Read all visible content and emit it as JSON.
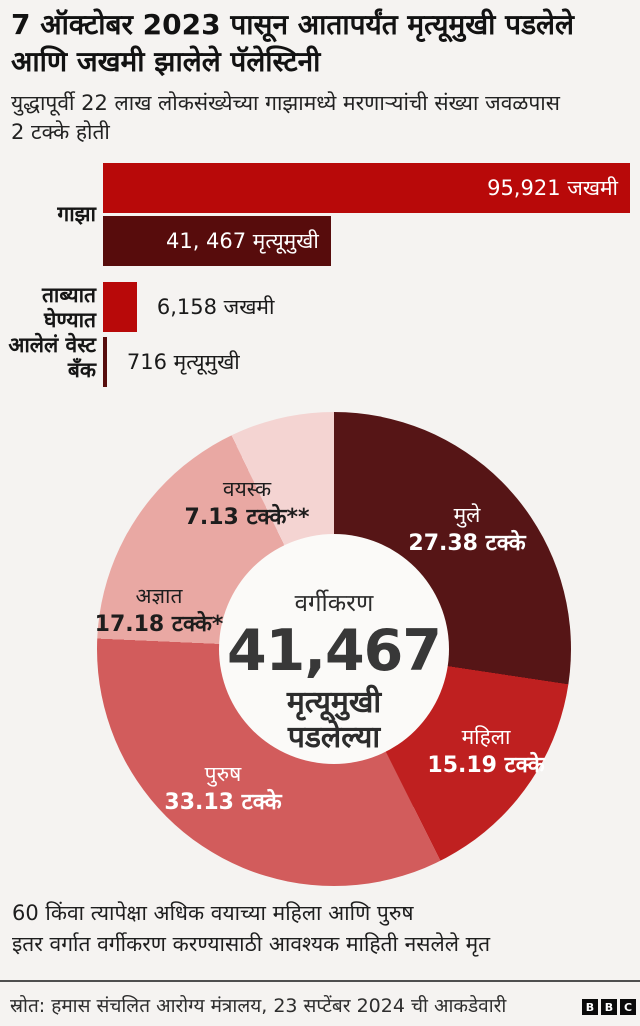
{
  "header": {
    "title": "7 ऑक्टोबर 2023 पासून आतापर्यंत मृत्यूमुखी पडलेले\nआणि जखमी झालेले पॅलेस्टिनी",
    "subtitle": "युद्धापूर्वी 22 लाख लोकसंख्येच्या गाझामध्ये मरणाऱ्यांची संख्या जवळपास\n2 टक्के होती"
  },
  "colors": {
    "background": "#f5f3f1",
    "injured_red": "#b80909",
    "dead_maroon": "#570c0c",
    "separator": "#4f4f4f",
    "logo_black": "#0a0a0a"
  },
  "chart_data": [
    {
      "type": "bar",
      "orientation": "horizontal",
      "xmax": 95921,
      "groups": [
        {
          "label": "गाझा",
          "bars": [
            {
              "name": "जखमी",
              "value": 95921,
              "label": "95,921 जखमी",
              "color": "#b80909",
              "label_inside": true
            },
            {
              "name": "मृत्यूमुखी",
              "value": 41467,
              "label": "41, 467 मृत्यूमुखी",
              "color": "#570c0c",
              "label_inside": true
            }
          ]
        },
        {
          "label": "ताब्यात\nघेण्यात\nआलेलं वेस्ट\nबँक",
          "bars": [
            {
              "name": "जखमी",
              "value": 6158,
              "label": "6,158 जखमी",
              "color": "#b80909",
              "label_inside": false
            },
            {
              "name": "मृत्यूमुखी",
              "value": 716,
              "label": "716 मृत्यूमुखी",
              "color": "#570c0c",
              "label_inside": false
            }
          ]
        }
      ]
    },
    {
      "type": "donut",
      "start_angle_deg": 0,
      "clockwise": true,
      "center": {
        "title": "वर्गीकरण",
        "value": "41,467",
        "sub1": "मृत्यूमुखी",
        "sub2": "पडलेल्या"
      },
      "segments": [
        {
          "label": "मुले",
          "pct": 27.38,
          "pct_label": "27.38 टक्के",
          "color": "#561516",
          "text_color": "#ffffff"
        },
        {
          "label": "महिला",
          "pct": 15.19,
          "pct_label": "15.19 टक्के",
          "color": "#bf2020",
          "text_color": "#ffffff"
        },
        {
          "label": "पुरुष",
          "pct": 33.13,
          "pct_label": "33.13 टक्के",
          "color": "#d25c5c",
          "text_color": "#ffffff"
        },
        {
          "label": "अज्ञात",
          "pct": 17.18,
          "pct_label": "17.18 टक्के*",
          "color": "#e9a8a3",
          "text_color": "#1d1d1d"
        },
        {
          "label": "वयस्क",
          "pct": 7.13,
          "pct_label": "7.13 टक्के**",
          "color": "#f4d4d2",
          "text_color": "#1d1d1d"
        }
      ]
    }
  ],
  "footnotes": [
    "60 किंवा त्यापेक्षा अधिक वयाच्या महिला आणि पुरुष",
    "इतर वर्गात वर्गीकरण करण्यासाठी आवश्यक माहिती नसलेले मृत"
  ],
  "footer": {
    "source": "स्रोत: हमास संचलित आरोग्य मंत्रालय, 23 सप्टेंबर 2024 ची आकडेवारी",
    "logo": [
      "B",
      "B",
      "C"
    ]
  }
}
